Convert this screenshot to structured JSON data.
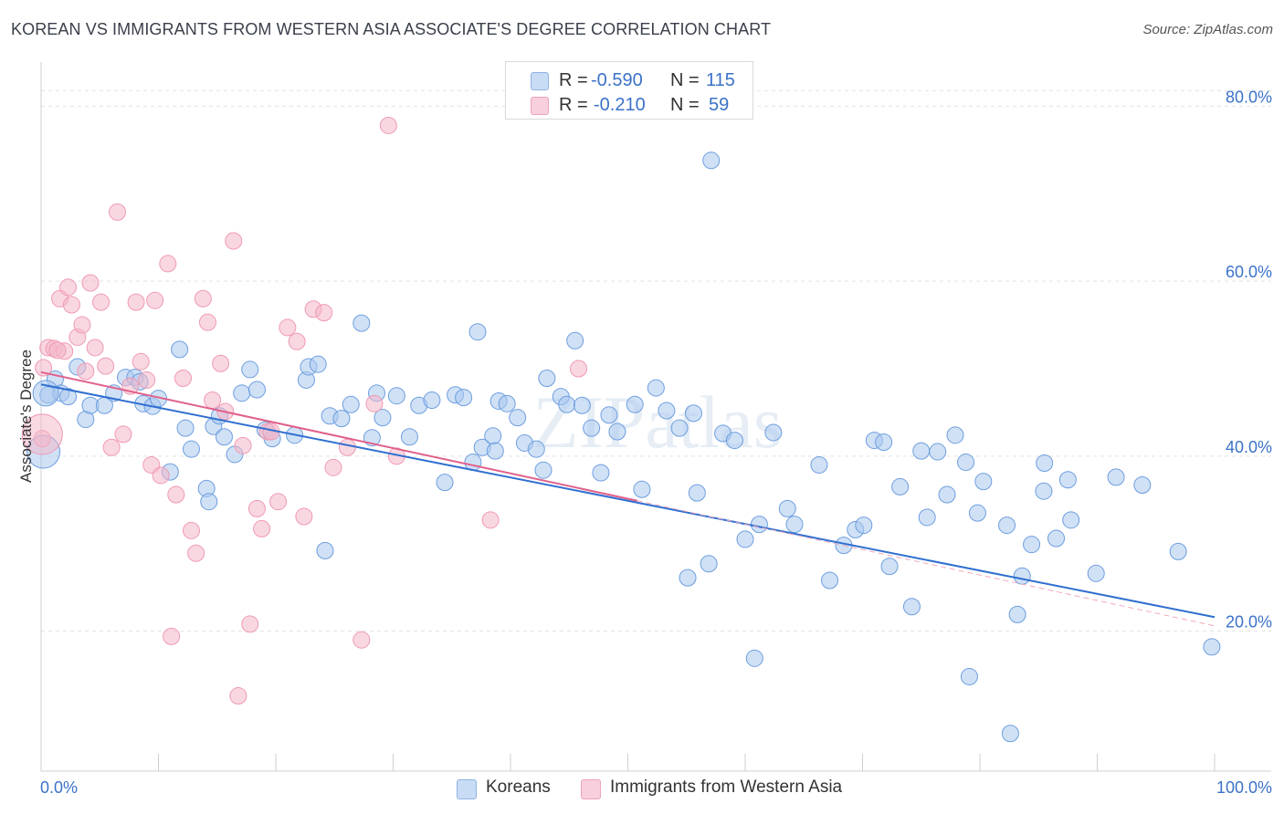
{
  "title": "KOREAN VS IMMIGRANTS FROM WESTERN ASIA ASSOCIATE'S DEGREE CORRELATION CHART",
  "source": "Source: ZipAtlas.com",
  "watermark": "ZIPatlas",
  "legend_top": {
    "rows": [
      {
        "r_label": "R =",
        "r_value": "-0.590",
        "n_label": "N =",
        "n_value": "115",
        "color": "#a9c8ee"
      },
      {
        "r_label": "R =",
        "r_value": "-0.210",
        "n_label": "N =",
        "n_value": "59",
        "color": "#f4b6c8"
      }
    ]
  },
  "legend_bottom": [
    {
      "label": "Koreans",
      "color": "#a9c8ee"
    },
    {
      "label": "Immigrants from Western Asia",
      "color": "#f4b6c8"
    }
  ],
  "chart_data": {
    "type": "scatter",
    "ylabel": "Associate's Degree",
    "xlim": [
      0,
      100
    ],
    "ylim": [
      0,
      82
    ],
    "x_tick_labels": [
      "0.0%",
      "100.0%"
    ],
    "y_ticks": [
      20,
      40,
      60,
      80
    ],
    "y_tick_labels": [
      "20.0%",
      "40.0%",
      "60.0%",
      "80.0%"
    ],
    "grid": true,
    "series": [
      {
        "name": "Koreans",
        "color": "#6d9edf",
        "fill": "#a9c8ee",
        "trend": {
          "x": [
            0,
            100
          ],
          "y": [
            48.2,
            21.6
          ],
          "color": "#2f6fd0"
        },
        "points": [
          [
            0.6,
            47.0
          ],
          [
            1.2,
            48.8
          ],
          [
            1.7,
            47.2
          ],
          [
            2.3,
            46.8
          ],
          [
            3.1,
            50.2
          ],
          [
            3.8,
            44.2
          ],
          [
            4.2,
            45.8
          ],
          [
            5.4,
            45.8
          ],
          [
            6.2,
            47.2
          ],
          [
            7.2,
            49.0
          ],
          [
            8.0,
            49.0
          ],
          [
            8.4,
            48.5
          ],
          [
            8.7,
            46.0
          ],
          [
            9.5,
            45.7
          ],
          [
            10.0,
            46.6
          ],
          [
            11.0,
            38.2
          ],
          [
            11.8,
            52.2
          ],
          [
            12.3,
            43.2
          ],
          [
            12.8,
            40.8
          ],
          [
            14.1,
            36.3
          ],
          [
            14.3,
            34.8
          ],
          [
            14.7,
            43.4
          ],
          [
            15.2,
            44.6
          ],
          [
            15.6,
            42.2
          ],
          [
            16.5,
            40.2
          ],
          [
            17.1,
            47.2
          ],
          [
            17.8,
            49.9
          ],
          [
            18.4,
            47.6
          ],
          [
            19.1,
            43.0
          ],
          [
            19.7,
            42.0
          ],
          [
            21.6,
            42.4
          ],
          [
            22.6,
            48.7
          ],
          [
            22.8,
            50.2
          ],
          [
            23.6,
            50.5
          ],
          [
            24.2,
            29.2
          ],
          [
            24.6,
            44.6
          ],
          [
            25.6,
            44.3
          ],
          [
            26.4,
            45.9
          ],
          [
            27.3,
            55.2
          ],
          [
            28.2,
            42.1
          ],
          [
            28.6,
            47.2
          ],
          [
            29.1,
            44.4
          ],
          [
            30.3,
            46.9
          ],
          [
            31.4,
            42.2
          ],
          [
            32.2,
            45.8
          ],
          [
            33.3,
            46.4
          ],
          [
            34.4,
            37.0
          ],
          [
            35.3,
            47.0
          ],
          [
            36.0,
            46.7
          ],
          [
            36.8,
            39.3
          ],
          [
            37.2,
            54.2
          ],
          [
            37.6,
            41.0
          ],
          [
            38.5,
            42.3
          ],
          [
            38.7,
            40.6
          ],
          [
            39.0,
            46.3
          ],
          [
            39.7,
            46.0
          ],
          [
            40.6,
            44.4
          ],
          [
            41.2,
            41.5
          ],
          [
            42.2,
            40.8
          ],
          [
            42.8,
            38.4
          ],
          [
            43.1,
            48.9
          ],
          [
            44.3,
            46.8
          ],
          [
            44.8,
            45.9
          ],
          [
            45.5,
            53.2
          ],
          [
            46.1,
            45.8
          ],
          [
            46.9,
            43.2
          ],
          [
            47.7,
            38.1
          ],
          [
            48.4,
            44.7
          ],
          [
            49.1,
            42.8
          ],
          [
            50.6,
            45.9
          ],
          [
            51.2,
            36.2
          ],
          [
            52.4,
            47.8
          ],
          [
            53.3,
            45.2
          ],
          [
            54.4,
            43.2
          ],
          [
            55.1,
            26.1
          ],
          [
            55.6,
            44.9
          ],
          [
            55.9,
            35.8
          ],
          [
            56.9,
            27.7
          ],
          [
            58.1,
            42.6
          ],
          [
            59.1,
            41.8
          ],
          [
            60.0,
            30.5
          ],
          [
            60.8,
            16.9
          ],
          [
            61.2,
            32.2
          ],
          [
            62.4,
            42.7
          ],
          [
            63.6,
            34.0
          ],
          [
            64.2,
            32.2
          ],
          [
            66.3,
            39.0
          ],
          [
            67.2,
            25.8
          ],
          [
            68.4,
            29.8
          ],
          [
            69.4,
            31.6
          ],
          [
            70.1,
            32.1
          ],
          [
            71.0,
            41.8
          ],
          [
            71.8,
            41.6
          ],
          [
            72.3,
            27.4
          ],
          [
            73.2,
            36.5
          ],
          [
            74.2,
            22.8
          ],
          [
            75.0,
            40.6
          ],
          [
            75.5,
            33.0
          ],
          [
            76.4,
            40.5
          ],
          [
            77.2,
            35.6
          ],
          [
            77.9,
            42.4
          ],
          [
            78.8,
            39.3
          ],
          [
            79.1,
            14.8
          ],
          [
            79.8,
            33.5
          ],
          [
            80.3,
            37.1
          ],
          [
            82.3,
            32.1
          ],
          [
            82.6,
            8.3
          ],
          [
            83.2,
            21.9
          ],
          [
            83.6,
            26.3
          ],
          [
            85.5,
            39.2
          ],
          [
            86.5,
            30.6
          ],
          [
            87.5,
            37.3
          ],
          [
            89.9,
            26.6
          ],
          [
            91.6,
            37.6
          ],
          [
            96.9,
            29.1
          ]
        ],
        "points_extra": [
          [
            105.5,
            29.9
          ],
          [
            106.8,
            36.0
          ],
          [
            109.7,
            32.7
          ],
          [
            117.3,
            36.7
          ],
          [
            124.7,
            18.2
          ],
          [
            57.1,
            73.8
          ]
        ]
      },
      {
        "name": "Immigrants from Western Asia",
        "color": "#ef9ab3",
        "fill": "#f4b6c8",
        "trend": {
          "x": [
            0,
            50.8
          ],
          "y": [
            49.6,
            34.9
          ],
          "color": "#e0608a"
        },
        "trend_dashed": {
          "x": [
            50.8,
            100
          ],
          "y": [
            34.9,
            20.6
          ],
          "color": "#f0a8bd"
        },
        "points": [
          [
            0.2,
            50.1
          ],
          [
            0.6,
            52.4
          ],
          [
            1.1,
            52.3
          ],
          [
            1.6,
            58.0
          ],
          [
            2.0,
            52.0
          ],
          [
            2.3,
            59.3
          ],
          [
            2.6,
            57.3
          ],
          [
            3.1,
            53.6
          ],
          [
            3.5,
            55.0
          ],
          [
            3.8,
            49.7
          ],
          [
            4.2,
            59.8
          ],
          [
            4.6,
            52.4
          ],
          [
            5.1,
            57.6
          ],
          [
            5.5,
            50.3
          ],
          [
            6.0,
            41.0
          ],
          [
            6.5,
            67.9
          ],
          [
            7.0,
            42.5
          ],
          [
            7.6,
            48.0
          ],
          [
            8.1,
            57.6
          ],
          [
            8.5,
            50.8
          ],
          [
            9.0,
            48.7
          ],
          [
            9.4,
            39.0
          ],
          [
            9.7,
            57.8
          ],
          [
            10.2,
            37.8
          ],
          [
            10.8,
            62.0
          ],
          [
            11.1,
            19.4
          ],
          [
            11.5,
            35.6
          ],
          [
            12.1,
            48.9
          ],
          [
            12.8,
            31.5
          ],
          [
            13.2,
            28.9
          ],
          [
            13.8,
            58.0
          ],
          [
            14.2,
            55.3
          ],
          [
            14.6,
            46.4
          ],
          [
            15.3,
            50.6
          ],
          [
            15.7,
            45.1
          ],
          [
            16.4,
            64.6
          ],
          [
            16.8,
            12.6
          ],
          [
            17.2,
            41.2
          ],
          [
            17.8,
            20.8
          ],
          [
            18.4,
            34.0
          ],
          [
            18.8,
            31.7
          ],
          [
            19.3,
            42.8
          ],
          [
            19.6,
            42.8
          ],
          [
            20.2,
            34.8
          ],
          [
            21.0,
            54.7
          ],
          [
            21.8,
            53.1
          ],
          [
            22.4,
            33.1
          ],
          [
            23.2,
            56.8
          ],
          [
            24.1,
            56.4
          ],
          [
            24.9,
            38.7
          ],
          [
            26.1,
            41.0
          ],
          [
            27.3,
            19.0
          ],
          [
            28.4,
            46.0
          ],
          [
            29.6,
            77.8
          ],
          [
            30.3,
            40.0
          ],
          [
            38.3,
            32.7
          ],
          [
            45.8,
            50.0
          ],
          [
            0.1,
            42.0
          ],
          [
            1.4,
            52.1
          ]
        ]
      }
    ]
  }
}
